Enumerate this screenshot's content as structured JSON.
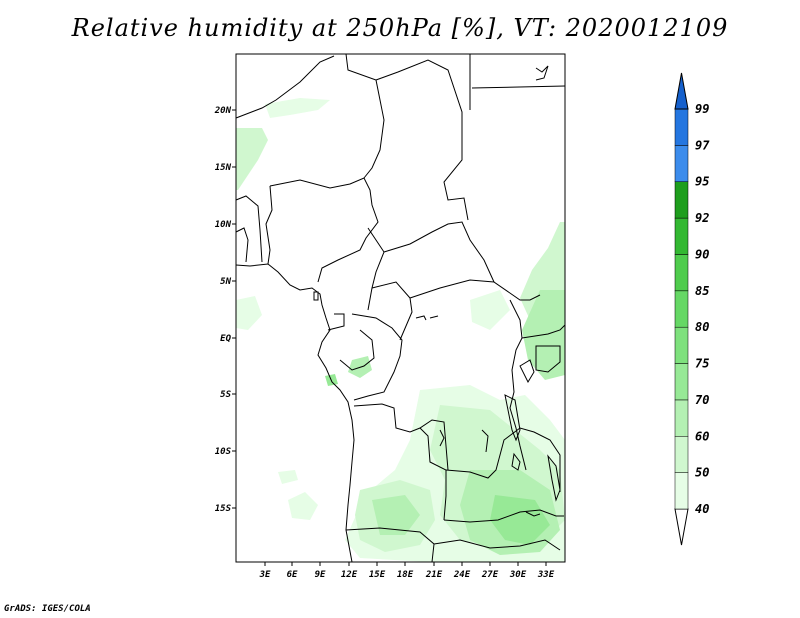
{
  "title": "Relative humidity at 250hPa [%], VT: 2020012109",
  "footer": "GrADS: IGES/COLA",
  "map": {
    "lon_ticks": [
      "3E",
      "6E",
      "9E",
      "12E",
      "15E",
      "18E",
      "21E",
      "24E",
      "27E",
      "30E",
      "33E"
    ],
    "lat_ticks": [
      "20N",
      "15N",
      "10N",
      "5N",
      "EQ",
      "5S",
      "10S",
      "15S"
    ]
  },
  "colorbar": {
    "levels": [
      "40",
      "50",
      "60",
      "70",
      "75",
      "80",
      "85",
      "90",
      "92",
      "95",
      "97",
      "99"
    ],
    "colors": [
      "#e6fde6",
      "#d0f7cf",
      "#b4f0b3",
      "#97e996",
      "#7ee17d",
      "#66d865",
      "#4fcc4d",
      "#33b832",
      "#1e9e1d",
      "#3c8cec",
      "#2476e0",
      "#1560cc"
    ]
  }
}
